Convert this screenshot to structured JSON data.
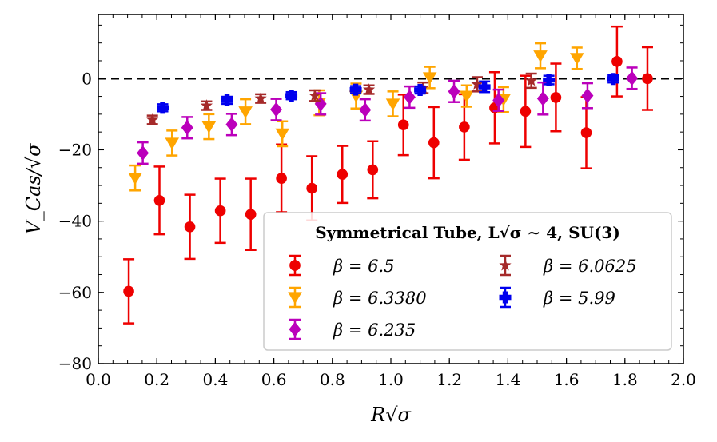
{
  "chart_data": {
    "type": "scatter",
    "xlabel": "R√σ",
    "ylabel": "V_Cas/√σ",
    "xlim": [
      0.0,
      2.0
    ],
    "ylim": [
      -80,
      18
    ],
    "xticks": [
      0.0,
      0.2,
      0.4,
      0.6,
      0.8,
      1.0,
      1.2,
      1.4,
      1.6,
      1.8,
      2.0
    ],
    "xtick_labels": [
      "0.0",
      "0.2",
      "0.4",
      "0.6",
      "0.8",
      "1.0",
      "1.2",
      "1.4",
      "1.6",
      "1.8",
      "2.0"
    ],
    "yticks": [
      -80,
      -60,
      -40,
      -20,
      0
    ],
    "ytick_labels": [
      "−80",
      "−60",
      "−40",
      "−20",
      "0"
    ],
    "reference_line": 0,
    "legend_title": "Symmetrical Tube, L√σ ∼ 4, SU(3)",
    "legend_position": "lower-right",
    "series": [
      {
        "name": "β = 6.5",
        "color": "#ee0000",
        "marker": "circle",
        "x": [
          0.104,
          0.209,
          0.313,
          0.417,
          0.521,
          0.626,
          0.73,
          0.834,
          0.938,
          1.043,
          1.147,
          1.251,
          1.355,
          1.46,
          1.564,
          1.668,
          1.773,
          1.877
        ],
        "y": [
          -59.7,
          -34.2,
          -41.6,
          -37.1,
          -38.1,
          -28.0,
          -30.8,
          -26.9,
          -25.6,
          -13.0,
          -18.0,
          -13.6,
          -8.2,
          -9.2,
          -5.3,
          -15.2,
          4.8,
          0.0
        ],
        "err": [
          9.0,
          9.5,
          9.0,
          9.0,
          10.0,
          9.5,
          9.0,
          8.0,
          8.0,
          8.5,
          10.0,
          9.2,
          10.0,
          10.0,
          9.5,
          10.0,
          9.8,
          8.8
        ]
      },
      {
        "name": "β = 6.3380",
        "color": "#ffa500",
        "marker": "triangle-down",
        "x": [
          0.126,
          0.252,
          0.378,
          0.503,
          0.629,
          0.755,
          0.881,
          1.007,
          1.133,
          1.259,
          1.385,
          1.511,
          1.636
        ],
        "y": [
          -27.9,
          -18.1,
          -13.5,
          -9.3,
          -15.5,
          -6.8,
          -4.9,
          -7.1,
          0.3,
          -4.9,
          -5.9,
          6.4,
          5.7
        ],
        "err": [
          3.5,
          3.5,
          3.5,
          3.5,
          3.5,
          3.5,
          3.5,
          3.5,
          3.0,
          3.0,
          3.5,
          3.5,
          3.0
        ]
      },
      {
        "name": "β = 6.235",
        "color": "#bb00bb",
        "marker": "diamond",
        "x": [
          0.152,
          0.304,
          0.456,
          0.608,
          0.76,
          0.912,
          1.064,
          1.216,
          1.368,
          1.52,
          1.672,
          1.824
        ],
        "y": [
          -20.9,
          -13.8,
          -12.9,
          -8.7,
          -7.1,
          -8.8,
          -5.2,
          -3.6,
          -6.1,
          -5.6,
          -4.8,
          0.1
        ],
        "err": [
          3.0,
          3.0,
          3.0,
          3.0,
          3.0,
          3.0,
          3.0,
          3.0,
          3.0,
          4.5,
          3.5,
          3.0
        ]
      },
      {
        "name": "β = 6.0625",
        "color": "#a52a2a",
        "marker": "star",
        "x": [
          0.185,
          0.37,
          0.555,
          0.74,
          0.925,
          1.11,
          1.295,
          1.48
        ],
        "y": [
          -11.6,
          -7.6,
          -5.6,
          -4.8,
          -3.1,
          -2.6,
          -1.6,
          -0.6
        ],
        "err": [
          1.2,
          1.2,
          1.2,
          1.5,
          1.2,
          1.5,
          2.0,
          2.0
        ]
      },
      {
        "name": "β = 5.99",
        "color": "#0000ee",
        "marker": "plus",
        "x": [
          0.22,
          0.44,
          0.66,
          0.88,
          1.1,
          1.32,
          1.54,
          1.76
        ],
        "y": [
          -8.2,
          -6.1,
          -4.8,
          -3.1,
          -3.2,
          -2.3,
          -0.4,
          -0.1
        ],
        "err": [
          1.0,
          1.0,
          1.0,
          1.0,
          1.0,
          1.5,
          1.2,
          1.0
        ]
      }
    ]
  }
}
